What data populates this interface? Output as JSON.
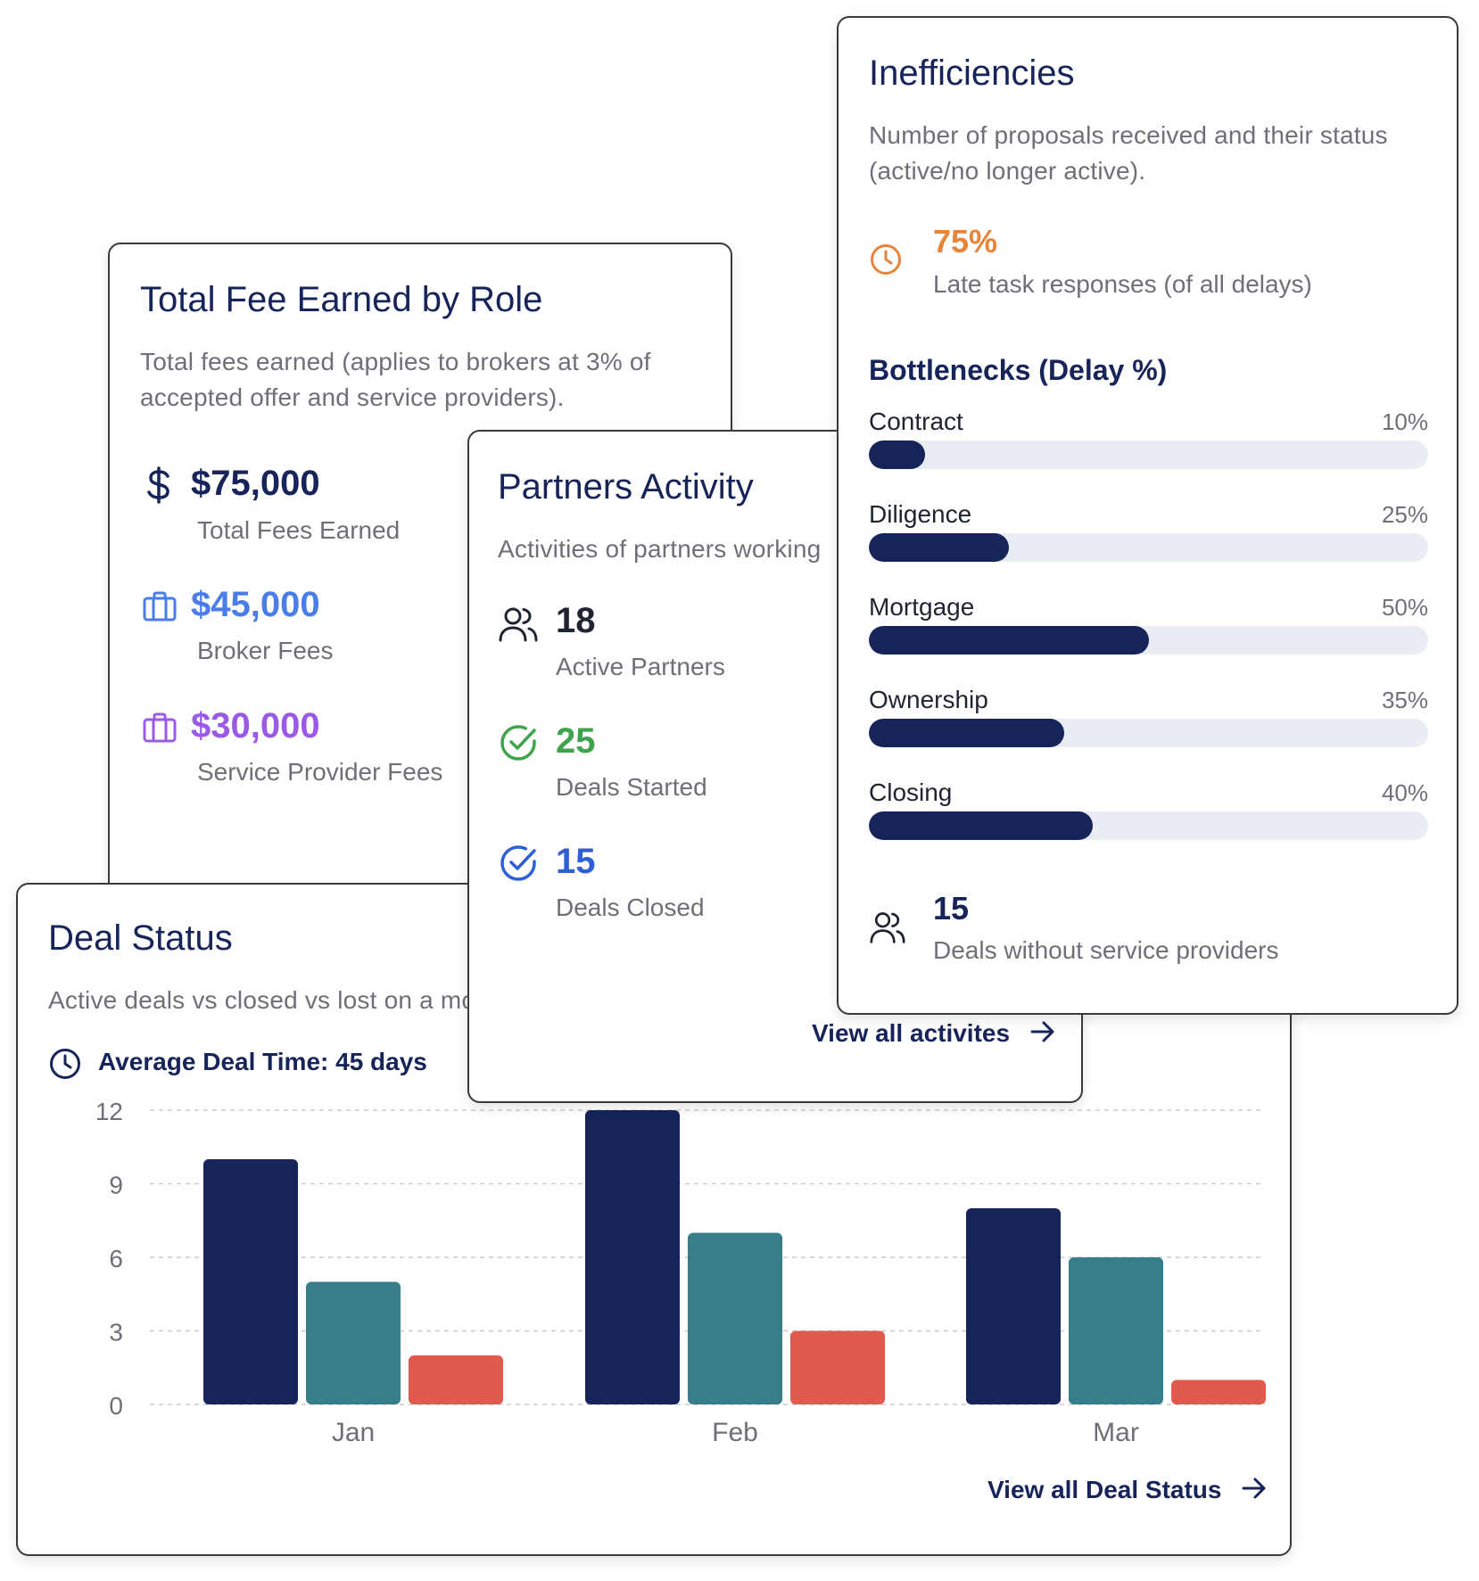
{
  "fee_card": {
    "title": "Total Fee Earned by Role",
    "subtitle": "Total fees earned (applies to brokers at 3% of accepted offer and service providers).",
    "stats": [
      {
        "value": "$75,000",
        "label": "Total Fees Earned",
        "icon": "dollar-icon",
        "color": "#16245a"
      },
      {
        "value": "$45,000",
        "label": "Broker Fees",
        "icon": "briefcase-icon",
        "color": "#4a7de8"
      },
      {
        "value": "$30,000",
        "label": "Service Provider Fees",
        "icon": "briefcase-icon",
        "color": "#9b59e8"
      }
    ]
  },
  "partners_card": {
    "title": "Partners Activity",
    "subtitle": "Activities of partners working",
    "stats": [
      {
        "value": "18",
        "label": "Active Partners",
        "icon": "users-icon",
        "color": "#1f2430"
      },
      {
        "value": "25",
        "label": "Deals Started",
        "icon": "check-circle-icon",
        "color": "#3fa34d"
      },
      {
        "value": "15",
        "label": "Deals Closed",
        "icon": "check-circle-icon",
        "color": "#2f5fd6"
      }
    ],
    "link": "View all activites"
  },
  "inefficiencies_card": {
    "title": "Inefficiencies",
    "subtitle": "Number of proposals received and their status (active/no longer active).",
    "late": {
      "value": "75%",
      "label": "Late task responses (of all delays)",
      "icon": "clock-icon",
      "color": "#e8843a"
    },
    "bottlenecks_title": "Bottlenecks (Delay %)",
    "bottlenecks": [
      {
        "label": "Contract",
        "value_text": "10%",
        "value": 10
      },
      {
        "label": "Diligence",
        "value_text": "25%",
        "value": 25
      },
      {
        "label": "Mortgage",
        "value_text": "50%",
        "value": 50
      },
      {
        "label": "Ownership",
        "value_text": "35%",
        "value": 35
      },
      {
        "label": "Closing",
        "value_text": "40%",
        "value": 40
      }
    ],
    "footer": {
      "value": "15",
      "label": "Deals without service providers",
      "icon": "users-icon"
    }
  },
  "deal_card": {
    "title": "Deal Status",
    "subtitle": "Active deals vs closed vs lost on a mo",
    "avg_label": "Average Deal Time: 45 days",
    "link": "View all Deal Status"
  },
  "chart_data": {
    "type": "bar",
    "categories": [
      "Jan",
      "Feb",
      "Mar"
    ],
    "series": [
      {
        "values": [
          10,
          12,
          8
        ],
        "color": "#16245a"
      },
      {
        "values": [
          5,
          7,
          6
        ],
        "color": "#377d8c"
      },
      {
        "values": [
          2,
          3,
          1
        ],
        "color": "#e05a4e"
      }
    ],
    "yticks": [
      0,
      3,
      6,
      9,
      12
    ],
    "ylim": [
      0,
      12
    ],
    "grid": true,
    "xlabel": "",
    "ylabel": ""
  }
}
